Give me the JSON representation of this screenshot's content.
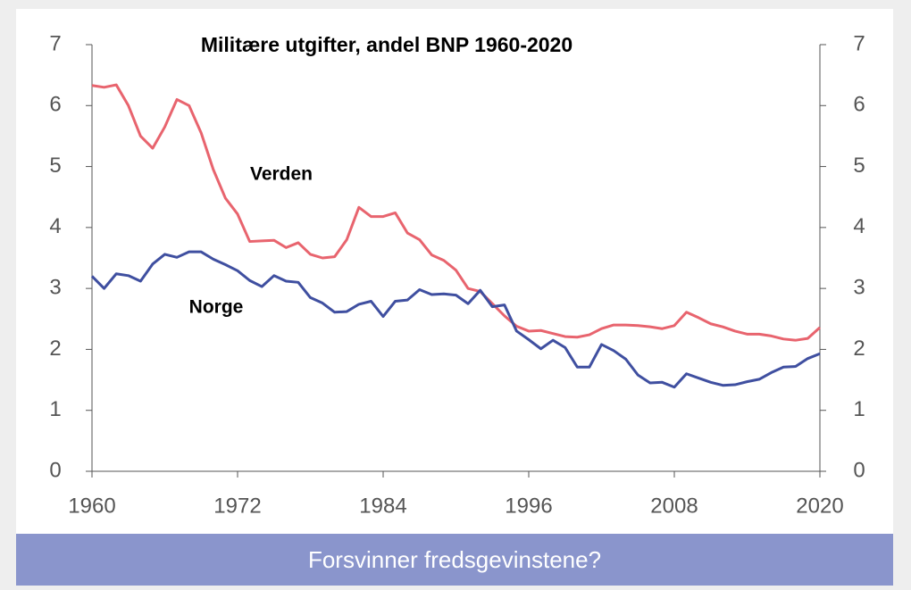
{
  "chart_data": {
    "type": "line",
    "title": "Militære utgifter, andel BNP 1960-2020",
    "caption": "Forsvinner fredsgevinstene?",
    "annotations": [
      "Verden",
      "Norge"
    ],
    "x": [
      1960,
      1961,
      1962,
      1963,
      1964,
      1965,
      1966,
      1967,
      1968,
      1969,
      1970,
      1971,
      1972,
      1973,
      1974,
      1975,
      1976,
      1977,
      1978,
      1979,
      1980,
      1981,
      1982,
      1983,
      1984,
      1985,
      1986,
      1987,
      1988,
      1989,
      1990,
      1991,
      1992,
      1993,
      1994,
      1995,
      1996,
      1997,
      1998,
      1999,
      2000,
      2001,
      2002,
      2003,
      2004,
      2005,
      2006,
      2007,
      2008,
      2009,
      2010,
      2011,
      2012,
      2013,
      2014,
      2015,
      2016,
      2017,
      2018,
      2019,
      2020
    ],
    "series": [
      {
        "name": "Verden",
        "color": "#e8646e",
        "values": [
          6.33,
          6.3,
          6.34,
          6.0,
          5.5,
          5.3,
          5.65,
          6.1,
          6.0,
          5.55,
          4.95,
          4.48,
          4.22,
          3.77,
          3.78,
          3.79,
          3.67,
          3.75,
          3.56,
          3.5,
          3.52,
          3.8,
          4.33,
          4.18,
          4.18,
          4.24,
          3.91,
          3.8,
          3.55,
          3.46,
          3.3,
          3.0,
          2.95,
          2.75,
          2.55,
          2.38,
          2.3,
          2.31,
          2.26,
          2.21,
          2.2,
          2.24,
          2.34,
          2.4,
          2.4,
          2.39,
          2.37,
          2.34,
          2.39,
          2.61,
          2.52,
          2.42,
          2.37,
          2.3,
          2.25,
          2.25,
          2.22,
          2.17,
          2.15,
          2.18,
          2.36
        ]
      },
      {
        "name": "Norge",
        "color": "#3f4fa0",
        "values": [
          3.2,
          3.0,
          3.24,
          3.21,
          3.12,
          3.4,
          3.56,
          3.51,
          3.6,
          3.6,
          3.48,
          3.39,
          3.29,
          3.13,
          3.03,
          3.21,
          3.12,
          3.1,
          2.85,
          2.76,
          2.61,
          2.62,
          2.74,
          2.79,
          2.54,
          2.79,
          2.81,
          2.98,
          2.9,
          2.91,
          2.89,
          2.75,
          2.97,
          2.7,
          2.73,
          2.3,
          2.16,
          2.01,
          2.15,
          2.03,
          1.71,
          1.71,
          2.08,
          1.98,
          1.84,
          1.58,
          1.45,
          1.46,
          1.38,
          1.6,
          1.53,
          1.46,
          1.41,
          1.42,
          1.47,
          1.51,
          1.62,
          1.71,
          1.72,
          1.85,
          1.93
        ]
      }
    ],
    "xlim": [
      1960,
      2020
    ],
    "xticks": [
      1960,
      1972,
      1984,
      1996,
      2008,
      2020
    ],
    "ylim": [
      0,
      7
    ],
    "yticks": [
      0,
      1,
      2,
      3,
      4,
      5,
      6,
      7
    ],
    "y2lim": [
      0,
      7
    ],
    "y2ticks": [
      0,
      1,
      2,
      3,
      4,
      5,
      6,
      7
    ]
  }
}
